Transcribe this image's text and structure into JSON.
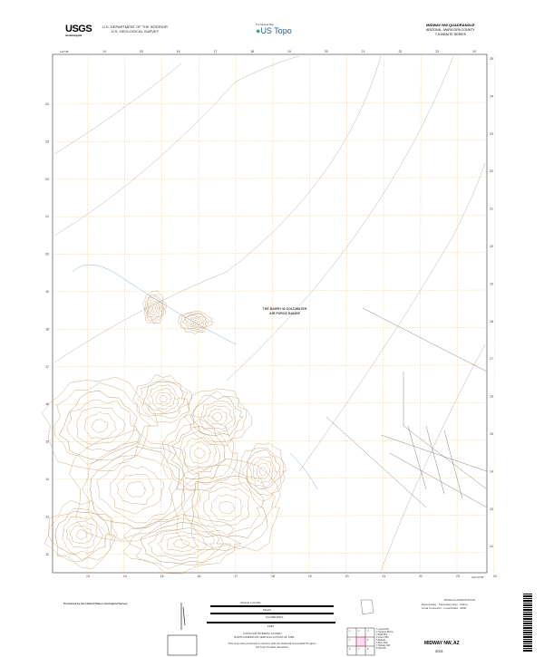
{
  "header": {
    "agency_logo": "USGS",
    "agency_tagline": "science for a changing world",
    "department": "U.S. DEPARTMENT OF THE INTERIOR",
    "survey": "U.S. GEOLOGICAL SURVEY",
    "series_logo": "US Topo",
    "series_tagline": "The National Map",
    "quad_title": "MIDWAY NW QUADRANGLE",
    "state_county": "ARIZONA - MARICOPA COUNTY",
    "series": "7.5-MINUTE SERIES"
  },
  "map": {
    "area_label_line1": "THE BARRY M GOLDWATER",
    "area_label_line2": "AIR FORCE RANGE",
    "corner_top_left": "112°45'",
    "corner_bottom_right": "112°37'30\"",
    "top_ticks": [
      "14",
      "15",
      "16",
      "17",
      "18",
      "19",
      "20",
      "21",
      "22",
      "23",
      "24"
    ],
    "bottom_ticks": [
      "13",
      "14",
      "15",
      "16",
      "17",
      "18",
      "19",
      "20",
      "21",
      "22",
      "23",
      "24"
    ],
    "left_ticks": [
      "24",
      "23",
      "22",
      "21",
      "20",
      "19",
      "18",
      "17",
      "16",
      "15",
      "14",
      "13",
      "12"
    ],
    "right_ticks": [
      "25",
      "24",
      "23",
      "22",
      "21",
      "20",
      "19",
      "18",
      "17",
      "16",
      "15",
      "14",
      "13",
      "12"
    ],
    "colors": {
      "contour": "#c8a57a",
      "grid": "#f5c77a",
      "water": "#7fb3d9",
      "road": "#888888"
    }
  },
  "footer": {
    "producer": "Produced by the United States Geological Survey",
    "scale": "SCALE 1:24 000",
    "scale_units": [
      "MILES",
      "KILOMETERS",
      "FEET"
    ],
    "contour_note": "CONTOUR INTERVAL 20 FEET",
    "datum_note": "NORTH AMERICAN VERTICAL DATUM OF 1988",
    "accuracy_note": "This map was produced to conform with the National Geospatial Program US Topo Product Standard.",
    "road_legend_title": "ROAD CLASSIFICATION",
    "road_legend": [
      "Expressway",
      "Secondary Hwy",
      "Ramp",
      "Local Connector",
      "Local Road",
      "4WD"
    ],
    "adjoining": [
      "1",
      "2",
      "3",
      "4",
      "5",
      "6",
      "7",
      "8"
    ],
    "adjoining_names": [
      "1 Ligurta NE",
      "2 Sentinel Plains",
      "3 Bear Mtn",
      "4 Aztec Hills",
      "5 Midway",
      "6 Mud Tank",
      "7 Midway SW",
      "8 Hat Mtn"
    ],
    "name": "MIDWAY NW, AZ",
    "year": "2021"
  }
}
